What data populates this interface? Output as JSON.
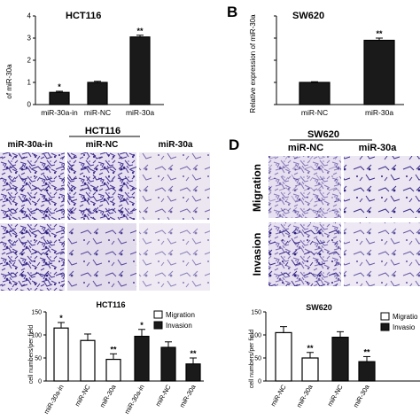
{
  "colors": {
    "bar": "#1a1a1a",
    "control": "#ffffff",
    "stain": "#4b3a9a",
    "field": "#ded5ec"
  },
  "panels": [
    {
      "letter": "",
      "title": "HCT116",
      "ylabel": "of miR-30a",
      "top_headers": []
    },
    {
      "letter": "B",
      "title": "SW620",
      "ylabel": "Relative expression of miR-30a",
      "top_headers": []
    },
    {
      "letter": "",
      "title": "HCT116",
      "ylabel": "cell numbers/per field",
      "top_headers": [
        "miR-30a-in",
        "miR-NC",
        "miR-30a"
      ],
      "row_labels": []
    },
    {
      "letter": "D",
      "title": "SW620",
      "ylabel": "cell numbers/per field",
      "top_headers": [
        "miR-NC",
        "miR-30a"
      ],
      "row_labels": [
        "Migration",
        "Invasion"
      ]
    }
  ],
  "legend": {
    "c": [
      "Migration",
      "Invasion"
    ],
    "d": [
      "Migratio",
      "Invasio"
    ]
  },
  "chart_data": [
    {
      "id": "A",
      "type": "bar",
      "title": "HCT116",
      "categories": [
        "miR-30a-in",
        "miR-NC",
        "miR-30a"
      ],
      "values": [
        0.55,
        1.0,
        3.05
      ],
      "errors": [
        0.05,
        0.05,
        0.08
      ],
      "significance": [
        "*",
        "",
        "**"
      ],
      "ylabel": "of miR-30a",
      "ylim": [
        0,
        4
      ],
      "yticks": [
        0,
        1,
        2,
        3,
        4
      ],
      "colors": [
        "#1a1a1a",
        "#1a1a1a",
        "#1a1a1a"
      ]
    },
    {
      "id": "B",
      "type": "bar",
      "title": "SW620",
      "categories": [
        "miR-NC",
        "miR-30a"
      ],
      "values": [
        1.0,
        2.9
      ],
      "errors": [
        0.03,
        0.1
      ],
      "significance": [
        "",
        "**"
      ],
      "ylabel": "Relative expression of miR-30a",
      "ylim": [
        0,
        4
      ],
      "yticks": [
        0,
        1,
        2,
        3,
        4
      ],
      "colors": [
        "#1a1a1a",
        "#1a1a1a"
      ]
    },
    {
      "id": "C",
      "type": "bar",
      "title": "HCT116",
      "categories": [
        "miR-30a-in",
        "miR-NC",
        "miR-30a",
        "miR-30a-in",
        "miR-NC",
        "miR-30a"
      ],
      "values": [
        115,
        88,
        47,
        97,
        73,
        37
      ],
      "errors": [
        12,
        14,
        12,
        15,
        12,
        13
      ],
      "significance": [
        "*",
        "",
        "**",
        "*",
        "",
        "**"
      ],
      "groups": [
        "Migration",
        "Migration",
        "Migration",
        "Invasion",
        "Invasion",
        "Invasion"
      ],
      "ylabel": "cell numbers/per field",
      "ylim": [
        0,
        150
      ],
      "yticks": [
        0,
        50,
        100,
        150
      ],
      "legend": [
        "Migration",
        "Invasion"
      ]
    },
    {
      "id": "D",
      "type": "bar",
      "title": "SW620",
      "categories": [
        "miR-NC",
        "miR-30a",
        "miR-NC",
        "miR-30a"
      ],
      "values": [
        105,
        50,
        95,
        42
      ],
      "errors": [
        13,
        12,
        12,
        11
      ],
      "significance": [
        "",
        "**",
        "",
        "**"
      ],
      "groups": [
        "Migration",
        "Migration",
        "Invasion",
        "Invasion"
      ],
      "ylabel": "cell numbers/per field",
      "ylim": [
        0,
        150
      ],
      "yticks": [
        0,
        50,
        100,
        150
      ],
      "legend": [
        "Migratio",
        "Invasio"
      ]
    }
  ]
}
